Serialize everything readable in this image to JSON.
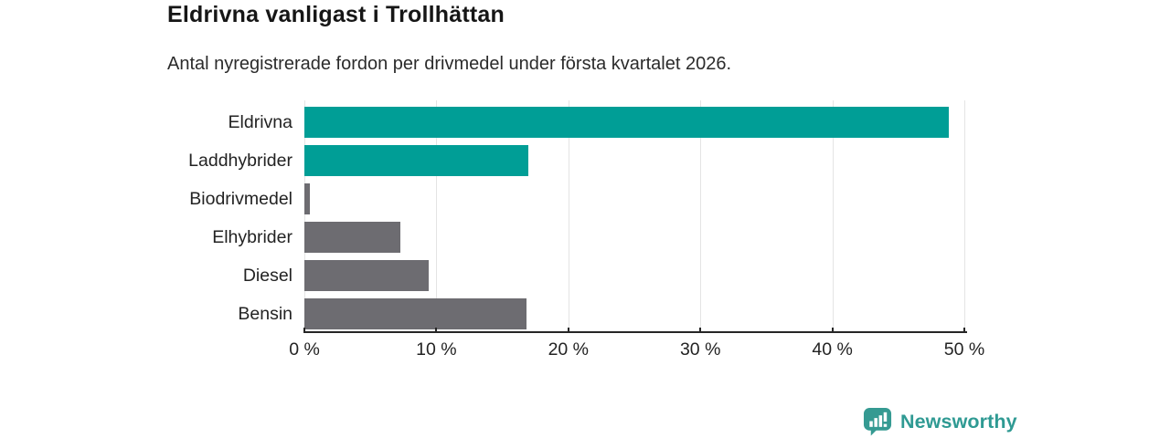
{
  "header": {
    "title": "Eldrivna vanligast i Trollhättan",
    "subtitle": "Antal nyregistrerade fordon per drivmedel under första kvartalet 2026."
  },
  "chart_data": {
    "type": "bar",
    "orientation": "horizontal",
    "categories": [
      "Eldrivna",
      "Laddhybrider",
      "Biodrivmedel",
      "Elhybrider",
      "Diesel",
      "Bensin"
    ],
    "values": [
      48.8,
      17.0,
      0.4,
      7.3,
      9.4,
      16.8
    ],
    "value_unit": "%",
    "bar_colors": [
      "#009E96",
      "#009E96",
      "#6D6C71",
      "#6D6C71",
      "#6D6C71",
      "#6D6C71"
    ],
    "highlight_color": "#009E96",
    "default_color": "#6D6C71",
    "xlim": [
      0,
      50
    ],
    "x_tick_values": [
      0,
      10,
      20,
      30,
      40,
      50
    ],
    "x_tick_labels": [
      "0 %",
      "10 %",
      "20 %",
      "30 %",
      "40 %",
      "50 %"
    ],
    "grid": "vertical",
    "grid_color": "#E4E4E4",
    "axis_color": "#262626",
    "legend": "none",
    "title": "Eldrivna vanligast i Trollhättan",
    "xlabel": "",
    "ylabel": ""
  },
  "branding": {
    "wordmark": "Newsworthy",
    "icon": "newsworthy-bubble-chart-icon",
    "color": "#2F9A93"
  }
}
